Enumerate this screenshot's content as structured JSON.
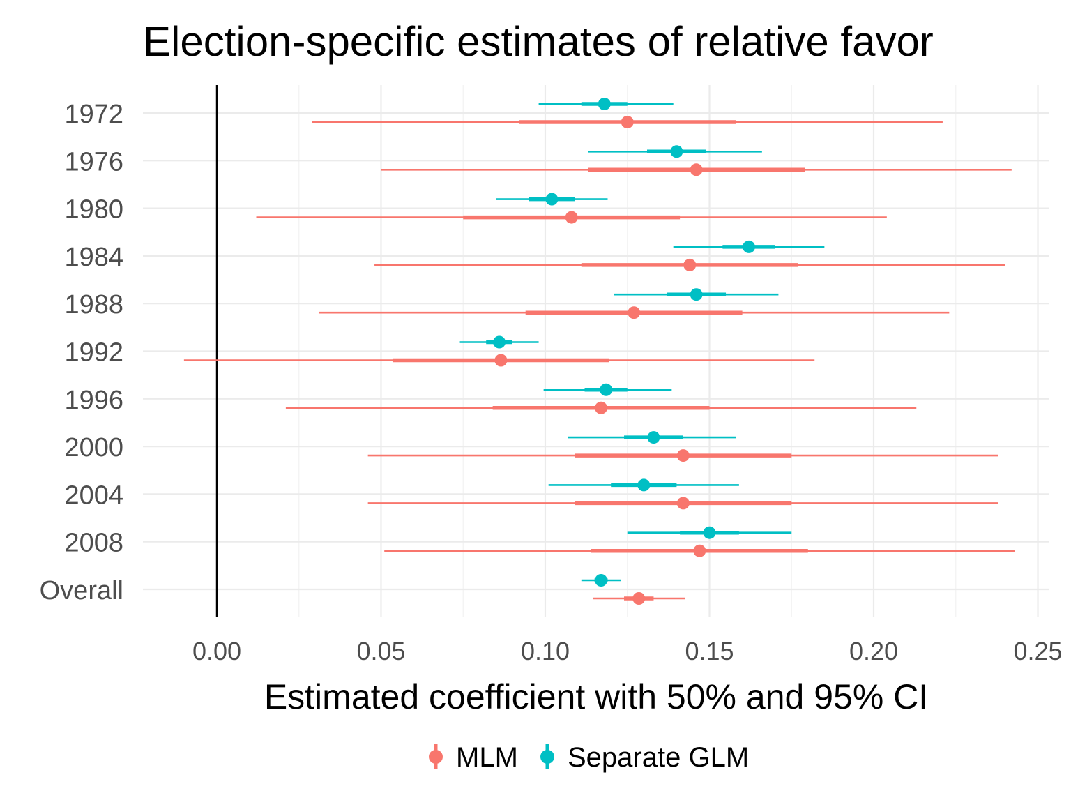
{
  "chart_data": {
    "type": "forest",
    "title": "Election-specific estimates of relative favor",
    "xlabel": "Estimated coefficient with 50% and 95% CI",
    "ylabel": "",
    "xlim": [
      -0.0225,
      0.2535
    ],
    "x_ticks": [
      "0.00",
      "0.05",
      "0.10",
      "0.15",
      "0.20",
      "0.25"
    ],
    "x_tick_values": [
      0,
      0.05,
      0.1,
      0.15,
      0.2,
      0.25
    ],
    "reference_line": 0,
    "grid": true,
    "legend_position": "bottom",
    "categories": [
      "1972",
      "1976",
      "1980",
      "1984",
      "1988",
      "1992",
      "1996",
      "2000",
      "2004",
      "2008",
      "Overall"
    ],
    "series": [
      {
        "name": "MLM",
        "color": "#F8766D",
        "estimate": [
          0.125,
          0.146,
          0.108,
          0.144,
          0.127,
          0.0865,
          0.117,
          0.142,
          0.142,
          0.147,
          0.1285
        ],
        "ci50_low": [
          0.092,
          0.113,
          0.075,
          0.111,
          0.094,
          0.0535,
          0.084,
          0.109,
          0.109,
          0.114,
          0.124
        ],
        "ci50_high": [
          0.158,
          0.179,
          0.141,
          0.177,
          0.16,
          0.1195,
          0.15,
          0.175,
          0.175,
          0.18,
          0.133
        ],
        "ci95_low": [
          0.029,
          0.05,
          0.012,
          0.048,
          0.031,
          -0.01,
          0.021,
          0.046,
          0.046,
          0.051,
          0.1145
        ],
        "ci95_high": [
          0.221,
          0.242,
          0.204,
          0.24,
          0.223,
          0.182,
          0.213,
          0.238,
          0.238,
          0.243,
          0.1425
        ]
      },
      {
        "name": "Separate GLM",
        "color": "#00BFC4",
        "estimate": [
          0.118,
          0.14,
          0.102,
          0.162,
          0.146,
          0.086,
          0.1185,
          0.133,
          0.13,
          0.15,
          0.117
        ],
        "ci50_low": [
          0.111,
          0.131,
          0.095,
          0.154,
          0.137,
          0.082,
          0.112,
          0.124,
          0.12,
          0.141,
          0.115
        ],
        "ci50_high": [
          0.125,
          0.149,
          0.109,
          0.17,
          0.155,
          0.09,
          0.125,
          0.142,
          0.14,
          0.159,
          0.119
        ],
        "ci95_low": [
          0.098,
          0.113,
          0.085,
          0.139,
          0.121,
          0.074,
          0.0995,
          0.107,
          0.101,
          0.125,
          0.111
        ],
        "ci95_high": [
          0.139,
          0.166,
          0.119,
          0.185,
          0.171,
          0.098,
          0.1385,
          0.158,
          0.159,
          0.175,
          0.123
        ]
      }
    ]
  }
}
